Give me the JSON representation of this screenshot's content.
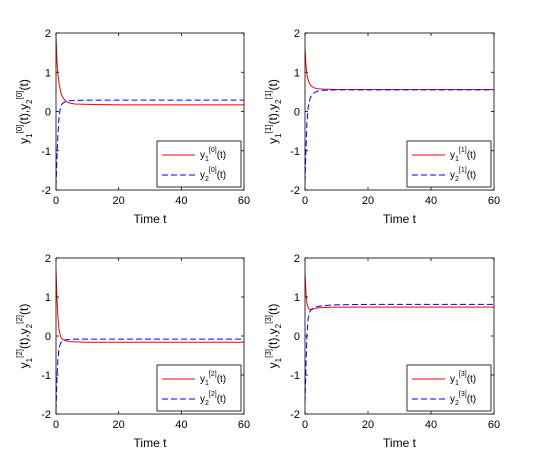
{
  "chart_data": [
    {
      "type": "line",
      "index": "0",
      "xlabel": "Time t",
      "ylabel": "y1[0](t),y2[0](t)",
      "xlim": [
        0,
        60
      ],
      "ylim": [
        -2,
        2
      ],
      "xticks": [
        "0",
        "20",
        "40",
        "60"
      ],
      "yticks": [
        "-2",
        "-1",
        "0",
        "1",
        "2"
      ],
      "legend_position": "bottom-right",
      "series": [
        {
          "name": "y1[0](t)",
          "color": "#ff0000",
          "style": "solid",
          "x": [
            0,
            0.3,
            0.6,
            1,
            1.5,
            2,
            3,
            4,
            6,
            10,
            20,
            40,
            60
          ],
          "y": [
            1.9,
            1.3,
            0.95,
            0.7,
            0.5,
            0.38,
            0.27,
            0.22,
            0.19,
            0.18,
            0.17,
            0.17,
            0.17
          ]
        },
        {
          "name": "y2[0](t)",
          "color": "#0000ff",
          "style": "dashed",
          "x": [
            0,
            0.3,
            0.6,
            1,
            1.5,
            2,
            3,
            4,
            6,
            10,
            20,
            40,
            60
          ],
          "y": [
            -1.9,
            -1.2,
            -0.6,
            -0.1,
            0.12,
            0.2,
            0.25,
            0.27,
            0.28,
            0.29,
            0.29,
            0.29,
            0.29
          ]
        }
      ]
    },
    {
      "type": "line",
      "index": "1",
      "xlabel": "Time t",
      "ylabel": "y1[1](t),y2[1](t)",
      "xlim": [
        0,
        60
      ],
      "ylim": [
        -2,
        2
      ],
      "xticks": [
        "0",
        "20",
        "40",
        "60"
      ],
      "yticks": [
        "-2",
        "-1",
        "0",
        "1",
        "2"
      ],
      "legend_position": "bottom-right",
      "series": [
        {
          "name": "y1[1](t)",
          "color": "#ff0000",
          "style": "solid",
          "x": [
            0,
            0.3,
            0.6,
            1,
            1.5,
            2,
            3,
            4,
            6,
            10,
            20,
            40,
            60
          ],
          "y": [
            1.6,
            1.2,
            0.95,
            0.8,
            0.7,
            0.65,
            0.6,
            0.58,
            0.57,
            0.56,
            0.56,
            0.56,
            0.56
          ]
        },
        {
          "name": "y2[1](t)",
          "color": "#0000ff",
          "style": "dashed",
          "x": [
            0,
            0.3,
            0.6,
            1,
            1.5,
            2,
            3,
            4,
            6,
            10,
            20,
            40,
            60
          ],
          "y": [
            -1.8,
            -1.0,
            -0.3,
            0.1,
            0.3,
            0.4,
            0.48,
            0.52,
            0.54,
            0.55,
            0.55,
            0.55,
            0.55
          ]
        }
      ]
    },
    {
      "type": "line",
      "index": "2",
      "xlabel": "Time t",
      "ylabel": "y1[2](t),y2[2](t)",
      "xlim": [
        0,
        60
      ],
      "ylim": [
        -2,
        2
      ],
      "xticks": [
        "0",
        "20",
        "40",
        "60"
      ],
      "yticks": [
        "-2",
        "-1",
        "0",
        "1",
        "2"
      ],
      "legend_position": "bottom-right",
      "series": [
        {
          "name": "y1[2](t)",
          "color": "#ff0000",
          "style": "solid",
          "x": [
            0,
            0.3,
            0.6,
            1,
            1.5,
            2,
            3,
            4,
            6,
            10,
            20,
            40,
            60
          ],
          "y": [
            1.7,
            1.0,
            0.5,
            0.15,
            -0.02,
            -0.08,
            -0.12,
            -0.14,
            -0.15,
            -0.16,
            -0.16,
            -0.16,
            -0.16
          ]
        },
        {
          "name": "y2[2](t)",
          "color": "#0000ff",
          "style": "dashed",
          "x": [
            0,
            0.3,
            0.6,
            1,
            1.5,
            2,
            3,
            4,
            6,
            10,
            20,
            40,
            60
          ],
          "y": [
            -1.9,
            -1.1,
            -0.6,
            -0.3,
            -0.18,
            -0.13,
            -0.1,
            -0.09,
            -0.08,
            -0.08,
            -0.08,
            -0.08,
            -0.08
          ]
        }
      ]
    },
    {
      "type": "line",
      "index": "3",
      "xlabel": "Time t",
      "ylabel": "y1[3](t),y2[3](t)",
      "xlim": [
        0,
        60
      ],
      "ylim": [
        -2,
        2
      ],
      "xticks": [
        "0",
        "20",
        "40",
        "60"
      ],
      "yticks": [
        "-2",
        "-1",
        "0",
        "1",
        "2"
      ],
      "legend_position": "bottom-right",
      "series": [
        {
          "name": "y1[3](t)",
          "color": "#ff0000",
          "style": "solid",
          "x": [
            0,
            0.3,
            0.6,
            1,
            1.5,
            2,
            3,
            4,
            6,
            10,
            20,
            40,
            60
          ],
          "y": [
            1.6,
            1.1,
            0.85,
            0.72,
            0.68,
            0.68,
            0.7,
            0.72,
            0.73,
            0.74,
            0.74,
            0.74,
            0.74
          ]
        },
        {
          "name": "y2[3](t)",
          "color": "#0000ff",
          "style": "dashed",
          "x": [
            0,
            0.3,
            0.6,
            1,
            1.5,
            2,
            3,
            4,
            6,
            10,
            20,
            40,
            60
          ],
          "y": [
            -1.7,
            -0.8,
            0.0,
            0.45,
            0.62,
            0.68,
            0.73,
            0.76,
            0.78,
            0.8,
            0.81,
            0.81,
            0.81
          ]
        }
      ]
    }
  ]
}
